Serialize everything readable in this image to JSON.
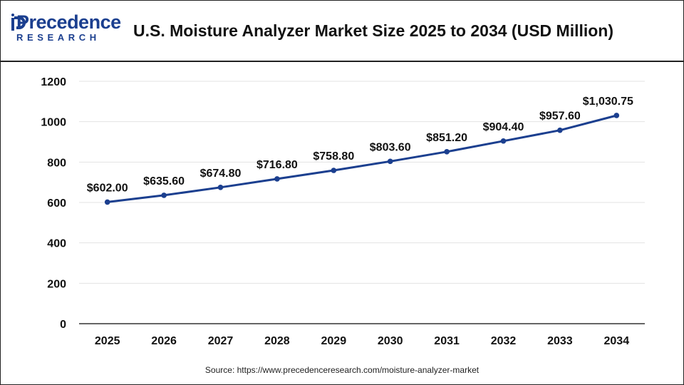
{
  "header": {
    "logo_top": "Precedence",
    "logo_bottom": "RESEARCH",
    "title": "U.S. Moisture Analyzer Market Size 2025 to 2034 (USD Million)"
  },
  "source": "Source: https://www.precedenceresearch.com/moisture-analyzer-market",
  "colors": {
    "line": "#1b3f8f",
    "grid": "#e3e3e3",
    "axis": "#333333",
    "brand": "#1b3f8f"
  },
  "chart_data": {
    "type": "line",
    "title": "U.S. Moisture Analyzer Market Size 2025 to 2034 (USD Million)",
    "xlabel": "",
    "ylabel": "",
    "ylim": [
      0,
      1200
    ],
    "yticks": [
      0,
      200,
      400,
      600,
      800,
      1000,
      1200
    ],
    "grid": true,
    "legend": "none",
    "categories": [
      "2025",
      "2026",
      "2027",
      "2028",
      "2029",
      "2030",
      "2031",
      "2032",
      "2033",
      "2034"
    ],
    "values": [
      602.0,
      635.6,
      674.8,
      716.8,
      758.8,
      803.6,
      851.2,
      904.4,
      957.6,
      1030.75
    ],
    "labels": [
      "$602.00",
      "$635.60",
      "$674.80",
      "$716.80",
      "$758.80",
      "$803.60",
      "$851.20",
      "$904.40",
      "$957.60",
      "$1,030.75"
    ]
  }
}
